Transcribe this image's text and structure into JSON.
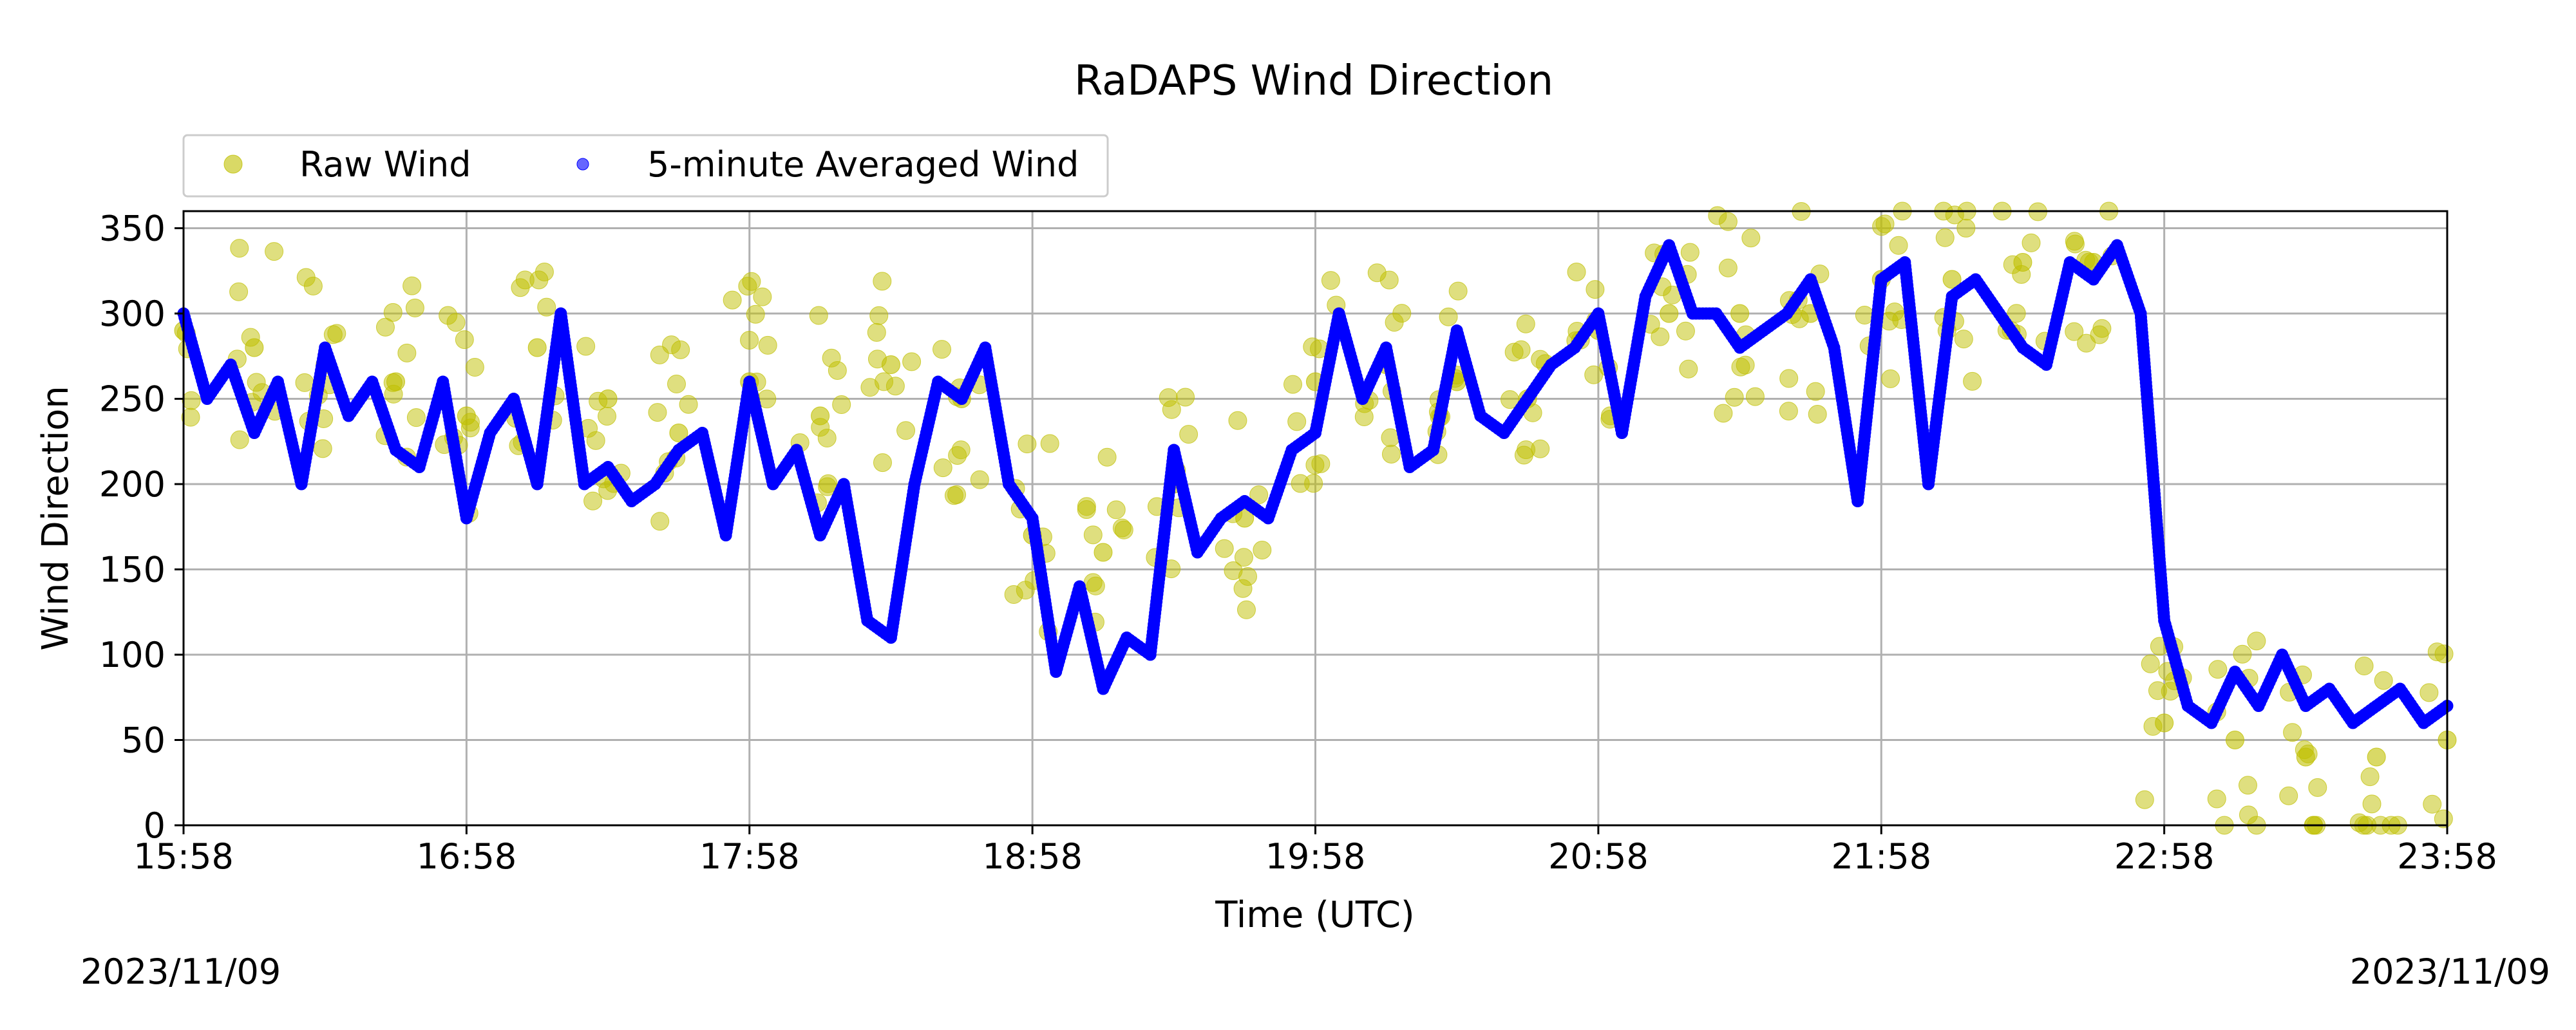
{
  "chart_data": {
    "type": "scatter",
    "title": "RaDAPS Wind Direction",
    "xlabel": "Time (UTC)",
    "ylabel": "Wind Direction",
    "x_range": [
      "2023-11-09 15:58",
      "2023-11-09 23:58"
    ],
    "ylim": [
      0,
      360
    ],
    "x_ticks": [
      "15:58",
      "16:58",
      "17:58",
      "18:58",
      "19:58",
      "20:58",
      "21:58",
      "22:58",
      "23:58"
    ],
    "y_ticks": [
      0,
      50,
      100,
      150,
      200,
      250,
      300,
      350
    ],
    "grid": true,
    "legend_placement": "top-left, above plot",
    "series": [
      {
        "name": "Raw Wind",
        "color": "#bfbf00",
        "marker": "circle",
        "alpha": 0.6,
        "note_spread_deg": 60,
        "times": [
          "15:58",
          "16:13",
          "16:28",
          "16:43",
          "16:58",
          "17:13",
          "17:28",
          "17:43",
          "17:58",
          "18:13",
          "18:28",
          "18:43",
          "18:58",
          "19:13",
          "19:28",
          "19:43",
          "19:58",
          "20:13",
          "20:28",
          "20:43",
          "20:58",
          "21:13",
          "21:28",
          "21:43",
          "21:58",
          "22:13",
          "22:28",
          "22:43",
          "22:58",
          "23:13",
          "23:28",
          "23:43",
          "23:58"
        ],
        "values": [
          290,
          280,
          270,
          260,
          240,
          280,
          250,
          230,
          260,
          240,
          270,
          250,
          170,
          160,
          200,
          180,
          260,
          270,
          260,
          250,
          290,
          300,
          300,
          300,
          320,
          320,
          330,
          330,
          60,
          50,
          40,
          40,
          50
        ]
      },
      {
        "name": "5-minute Averaged Wind",
        "color": "#0000ff",
        "marker": "circle",
        "times": [
          "15:58",
          "16:03",
          "16:08",
          "16:13",
          "16:18",
          "16:23",
          "16:28",
          "16:33",
          "16:38",
          "16:43",
          "16:48",
          "16:53",
          "16:58",
          "17:03",
          "17:08",
          "17:13",
          "17:18",
          "17:23",
          "17:28",
          "17:33",
          "17:38",
          "17:43",
          "17:48",
          "17:53",
          "17:58",
          "18:03",
          "18:08",
          "18:13",
          "18:18",
          "18:23",
          "18:28",
          "18:33",
          "18:38",
          "18:43",
          "18:48",
          "18:53",
          "18:58",
          "19:03",
          "19:08",
          "19:13",
          "19:18",
          "19:23",
          "19:28",
          "19:33",
          "19:38",
          "19:43",
          "19:48",
          "19:53",
          "19:58",
          "20:03",
          "20:08",
          "20:13",
          "20:18",
          "20:23",
          "20:28",
          "20:33",
          "20:38",
          "20:43",
          "20:48",
          "20:53",
          "20:58",
          "21:03",
          "21:08",
          "21:13",
          "21:18",
          "21:23",
          "21:28",
          "21:33",
          "21:38",
          "21:43",
          "21:48",
          "21:53",
          "21:58",
          "22:03",
          "22:08",
          "22:13",
          "22:18",
          "22:23",
          "22:28",
          "22:33",
          "22:38",
          "22:43",
          "22:48",
          "22:53",
          "22:58",
          "23:03",
          "23:08",
          "23:13",
          "23:18",
          "23:23",
          "23:28",
          "23:33",
          "23:38",
          "23:43",
          "23:48",
          "23:53",
          "23:58"
        ],
        "values": [
          300,
          250,
          270,
          230,
          260,
          200,
          280,
          240,
          260,
          220,
          210,
          260,
          180,
          230,
          250,
          200,
          300,
          200,
          210,
          190,
          200,
          220,
          230,
          170,
          260,
          200,
          220,
          170,
          200,
          120,
          110,
          200,
          260,
          250,
          280,
          200,
          180,
          90,
          140,
          80,
          110,
          100,
          220,
          160,
          180,
          190,
          180,
          220,
          230,
          300,
          250,
          280,
          210,
          220,
          290,
          240,
          230,
          250,
          270,
          280,
          300,
          230,
          310,
          340,
          300,
          300,
          280,
          290,
          300,
          320,
          280,
          190,
          320,
          330,
          200,
          310,
          320,
          300,
          280,
          270,
          330,
          320,
          340,
          300,
          120,
          70,
          60,
          90,
          70,
          100,
          70,
          80,
          60,
          70,
          80,
          60,
          70
        ]
      }
    ],
    "date_left": "2023/11/09",
    "date_right": "2023/11/09"
  }
}
